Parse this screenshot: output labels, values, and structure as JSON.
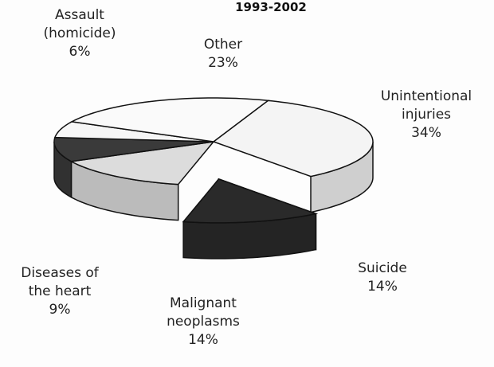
{
  "chart_data": {
    "type": "pie",
    "title": "1993-2002",
    "categories": [
      "Unintentional injuries",
      "Suicide",
      "Malignant neoplasms",
      "Diseases of the heart",
      "Assault (homicide)",
      "Other"
    ],
    "values": [
      34,
      14,
      14,
      9,
      6,
      23
    ],
    "value_labels": [
      "34%",
      "14%",
      "14%",
      "9%",
      "6%",
      "23%"
    ],
    "colors": [
      "#f4f4f4",
      "#2a2a2a",
      "#dcdcdc",
      "#3a3a3a",
      "#f6f6f6",
      "#fafafa"
    ],
    "explode": [
      false,
      true,
      false,
      false,
      false,
      false
    ]
  }
}
